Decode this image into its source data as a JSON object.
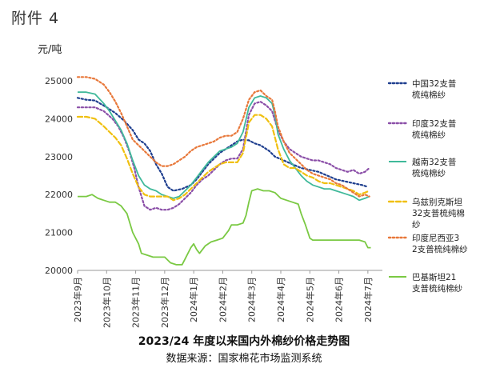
{
  "doc_label": "附件 4",
  "caption": {
    "title": "2023/24 年度以来国内外棉纱价格走势图",
    "source": "数据来源：国家棉花市场监测系统"
  },
  "chart_data": {
    "type": "line",
    "title": "",
    "xlabel": "",
    "ylabel": "元/吨",
    "ylim": [
      20000,
      25000
    ],
    "yticks": [
      20000,
      21000,
      22000,
      23000,
      24000,
      25000
    ],
    "xlim": [
      0,
      10.5
    ],
    "xtick_labels": [
      "2023年9月",
      "2023年10月",
      "2023年11月",
      "2023年12月",
      "2024年1月",
      "2024年2月",
      "2024年3月",
      "2024年4月",
      "2024年5月",
      "2024年6月",
      "2024年7月"
    ],
    "grid": false,
    "legend_position": "right",
    "series": [
      {
        "name": "中国32支普梳纯棉纱",
        "color": "#1f3f8f",
        "dash": "dotted",
        "points": [
          [
            0,
            24550
          ],
          [
            0.3,
            24500
          ],
          [
            0.6,
            24480
          ],
          [
            1.0,
            24300
          ],
          [
            1.3,
            24150
          ],
          [
            1.6,
            23950
          ],
          [
            1.9,
            23700
          ],
          [
            2.1,
            23450
          ],
          [
            2.3,
            23350
          ],
          [
            2.5,
            23150
          ],
          [
            2.7,
            22800
          ],
          [
            2.9,
            22550
          ],
          [
            3.1,
            22200
          ],
          [
            3.3,
            22100
          ],
          [
            3.6,
            22150
          ],
          [
            3.9,
            22250
          ],
          [
            4.1,
            22400
          ],
          [
            4.3,
            22600
          ],
          [
            4.5,
            22800
          ],
          [
            4.7,
            22950
          ],
          [
            4.9,
            23100
          ],
          [
            5.1,
            23200
          ],
          [
            5.3,
            23300
          ],
          [
            5.5,
            23400
          ],
          [
            5.7,
            23450
          ],
          [
            5.9,
            23430
          ],
          [
            6.1,
            23350
          ],
          [
            6.3,
            23300
          ],
          [
            6.4,
            23250
          ],
          [
            6.6,
            23150
          ],
          [
            6.8,
            23000
          ],
          [
            7.1,
            22900
          ],
          [
            7.4,
            22800
          ],
          [
            7.7,
            22700
          ],
          [
            8.0,
            22650
          ],
          [
            8.3,
            22600
          ],
          [
            8.6,
            22500
          ],
          [
            8.9,
            22400
          ],
          [
            9.2,
            22350
          ],
          [
            9.5,
            22300
          ],
          [
            9.8,
            22250
          ],
          [
            10.0,
            22200
          ]
        ]
      },
      {
        "name": "印度32支普梳纯棉纱",
        "color": "#8b4fa8",
        "dash": "dotted",
        "points": [
          [
            0,
            24300
          ],
          [
            0.3,
            24300
          ],
          [
            0.6,
            24300
          ],
          [
            0.9,
            24200
          ],
          [
            1.2,
            24000
          ],
          [
            1.4,
            23800
          ],
          [
            1.6,
            23500
          ],
          [
            1.8,
            23100
          ],
          [
            1.95,
            22700
          ],
          [
            2.1,
            22200
          ],
          [
            2.3,
            21700
          ],
          [
            2.5,
            21600
          ],
          [
            2.7,
            21650
          ],
          [
            2.9,
            21600
          ],
          [
            3.1,
            21600
          ],
          [
            3.3,
            21650
          ],
          [
            3.5,
            21750
          ],
          [
            3.7,
            21900
          ],
          [
            3.9,
            22050
          ],
          [
            4.1,
            22250
          ],
          [
            4.3,
            22400
          ],
          [
            4.5,
            22500
          ],
          [
            4.7,
            22650
          ],
          [
            4.9,
            22800
          ],
          [
            5.1,
            22900
          ],
          [
            5.3,
            22950
          ],
          [
            5.5,
            22950
          ],
          [
            5.7,
            23200
          ],
          [
            5.9,
            24100
          ],
          [
            6.1,
            24400
          ],
          [
            6.3,
            24450
          ],
          [
            6.5,
            24350
          ],
          [
            6.7,
            24200
          ],
          [
            6.9,
            23700
          ],
          [
            7.1,
            23400
          ],
          [
            7.3,
            23200
          ],
          [
            7.5,
            23100
          ],
          [
            7.7,
            23000
          ],
          [
            7.9,
            22950
          ],
          [
            8.1,
            22900
          ],
          [
            8.3,
            22900
          ],
          [
            8.5,
            22850
          ],
          [
            8.7,
            22800
          ],
          [
            8.9,
            22700
          ],
          [
            9.1,
            22650
          ],
          [
            9.3,
            22600
          ],
          [
            9.5,
            22650
          ],
          [
            9.7,
            22550
          ],
          [
            9.9,
            22600
          ],
          [
            10.05,
            22700
          ]
        ]
      },
      {
        "name": "越南32支普梳纯棉纱",
        "color": "#3fb99a",
        "dash": "solid",
        "points": [
          [
            0,
            24700
          ],
          [
            0.3,
            24700
          ],
          [
            0.6,
            24650
          ],
          [
            0.9,
            24400
          ],
          [
            1.1,
            24200
          ],
          [
            1.3,
            23950
          ],
          [
            1.5,
            23700
          ],
          [
            1.7,
            23350
          ],
          [
            1.9,
            22900
          ],
          [
            2.1,
            22500
          ],
          [
            2.3,
            22250
          ],
          [
            2.5,
            22150
          ],
          [
            2.7,
            22100
          ],
          [
            2.9,
            22000
          ],
          [
            3.1,
            21950
          ],
          [
            3.3,
            21900
          ],
          [
            3.5,
            21950
          ],
          [
            3.7,
            22100
          ],
          [
            3.9,
            22250
          ],
          [
            4.1,
            22450
          ],
          [
            4.3,
            22650
          ],
          [
            4.5,
            22850
          ],
          [
            4.7,
            23000
          ],
          [
            4.9,
            23150
          ],
          [
            5.1,
            23200
          ],
          [
            5.3,
            23250
          ],
          [
            5.5,
            23350
          ],
          [
            5.7,
            23650
          ],
          [
            5.9,
            24300
          ],
          [
            6.1,
            24550
          ],
          [
            6.3,
            24600
          ],
          [
            6.5,
            24550
          ],
          [
            6.7,
            24400
          ],
          [
            6.8,
            24100
          ],
          [
            6.9,
            23600
          ],
          [
            7.1,
            23200
          ],
          [
            7.3,
            22900
          ],
          [
            7.5,
            22700
          ],
          [
            7.7,
            22500
          ],
          [
            7.9,
            22350
          ],
          [
            8.1,
            22250
          ],
          [
            8.3,
            22200
          ],
          [
            8.5,
            22150
          ],
          [
            8.7,
            22150
          ],
          [
            8.9,
            22100
          ],
          [
            9.1,
            22050
          ],
          [
            9.3,
            22000
          ],
          [
            9.5,
            21950
          ],
          [
            9.7,
            21850
          ],
          [
            9.9,
            21900
          ],
          [
            10.05,
            21950
          ]
        ]
      },
      {
        "name": "乌兹别克斯坦32支普梳纯棉纱",
        "color": "#f0c010",
        "dash": "dashed",
        "points": [
          [
            0,
            24050
          ],
          [
            0.3,
            24050
          ],
          [
            0.6,
            24000
          ],
          [
            0.9,
            23800
          ],
          [
            1.1,
            23650
          ],
          [
            1.3,
            23500
          ],
          [
            1.5,
            23300
          ],
          [
            1.7,
            22950
          ],
          [
            1.9,
            22550
          ],
          [
            2.1,
            22200
          ],
          [
            2.3,
            22000
          ],
          [
            2.5,
            21950
          ],
          [
            2.7,
            21950
          ],
          [
            2.9,
            21950
          ],
          [
            3.1,
            21950
          ],
          [
            3.3,
            21850
          ],
          [
            3.5,
            21900
          ],
          [
            3.7,
            22000
          ],
          [
            3.9,
            22150
          ],
          [
            4.1,
            22300
          ],
          [
            4.3,
            22450
          ],
          [
            4.5,
            22600
          ],
          [
            4.7,
            22700
          ],
          [
            4.9,
            22800
          ],
          [
            5.1,
            22850
          ],
          [
            5.3,
            22850
          ],
          [
            5.5,
            22850
          ],
          [
            5.7,
            23100
          ],
          [
            5.9,
            23900
          ],
          [
            6.1,
            24100
          ],
          [
            6.3,
            24100
          ],
          [
            6.5,
            24000
          ],
          [
            6.7,
            23800
          ],
          [
            6.9,
            23200
          ],
          [
            7.1,
            22800
          ],
          [
            7.3,
            22700
          ],
          [
            7.5,
            22700
          ],
          [
            7.7,
            22600
          ],
          [
            7.9,
            22500
          ],
          [
            8.1,
            22450
          ],
          [
            8.3,
            22350
          ],
          [
            8.5,
            22300
          ],
          [
            8.7,
            22300
          ],
          [
            8.9,
            22250
          ],
          [
            9.1,
            22200
          ],
          [
            9.3,
            22150
          ],
          [
            9.5,
            22100
          ],
          [
            9.7,
            22000
          ],
          [
            9.9,
            22050
          ],
          [
            10.05,
            22100
          ]
        ]
      },
      {
        "name": "印度尼西亚32支普梳纯棉纱",
        "color": "#e8783a",
        "dash": "dotted",
        "points": [
          [
            0,
            25100
          ],
          [
            0.3,
            25100
          ],
          [
            0.6,
            25050
          ],
          [
            0.9,
            24900
          ],
          [
            1.1,
            24700
          ],
          [
            1.3,
            24450
          ],
          [
            1.5,
            24150
          ],
          [
            1.7,
            23800
          ],
          [
            1.9,
            23450
          ],
          [
            2.1,
            23300
          ],
          [
            2.3,
            23150
          ],
          [
            2.5,
            23000
          ],
          [
            2.7,
            22850
          ],
          [
            2.9,
            22750
          ],
          [
            3.1,
            22750
          ],
          [
            3.3,
            22800
          ],
          [
            3.5,
            22900
          ],
          [
            3.7,
            23000
          ],
          [
            3.9,
            23150
          ],
          [
            4.1,
            23250
          ],
          [
            4.3,
            23300
          ],
          [
            4.5,
            23350
          ],
          [
            4.7,
            23400
          ],
          [
            4.9,
            23500
          ],
          [
            5.1,
            23550
          ],
          [
            5.3,
            23550
          ],
          [
            5.5,
            23650
          ],
          [
            5.7,
            24000
          ],
          [
            5.9,
            24500
          ],
          [
            6.1,
            24700
          ],
          [
            6.3,
            24750
          ],
          [
            6.5,
            24600
          ],
          [
            6.7,
            24500
          ],
          [
            6.8,
            24200
          ],
          [
            6.9,
            23800
          ],
          [
            7.1,
            23400
          ],
          [
            7.3,
            23100
          ],
          [
            7.5,
            22950
          ],
          [
            7.7,
            22800
          ],
          [
            7.9,
            22650
          ],
          [
            8.1,
            22550
          ],
          [
            8.3,
            22500
          ],
          [
            8.5,
            22450
          ],
          [
            8.7,
            22400
          ],
          [
            8.9,
            22300
          ],
          [
            9.1,
            22250
          ],
          [
            9.3,
            22150
          ],
          [
            9.5,
            22050
          ],
          [
            9.7,
            21950
          ],
          [
            9.9,
            22000
          ],
          [
            10.05,
            21950
          ]
        ]
      },
      {
        "name": "巴基斯坦21支普梳纯棉纱",
        "color": "#7ac943",
        "dash": "solid",
        "points": [
          [
            0,
            21950
          ],
          [
            0.3,
            21950
          ],
          [
            0.5,
            22000
          ],
          [
            0.7,
            21900
          ],
          [
            0.9,
            21850
          ],
          [
            1.1,
            21800
          ],
          [
            1.3,
            21800
          ],
          [
            1.5,
            21700
          ],
          [
            1.7,
            21500
          ],
          [
            1.9,
            21000
          ],
          [
            2.1,
            20700
          ],
          [
            2.2,
            20450
          ],
          [
            2.4,
            20400
          ],
          [
            2.6,
            20350
          ],
          [
            2.8,
            20350
          ],
          [
            3.0,
            20350
          ],
          [
            3.2,
            20200
          ],
          [
            3.4,
            20150
          ],
          [
            3.6,
            20150
          ],
          [
            3.7,
            20300
          ],
          [
            3.9,
            20600
          ],
          [
            4.0,
            20700
          ],
          [
            4.1,
            20550
          ],
          [
            4.2,
            20450
          ],
          [
            4.4,
            20650
          ],
          [
            4.6,
            20750
          ],
          [
            4.8,
            20800
          ],
          [
            5.0,
            20850
          ],
          [
            5.2,
            21050
          ],
          [
            5.3,
            21200
          ],
          [
            5.5,
            21200
          ],
          [
            5.7,
            21250
          ],
          [
            5.8,
            21450
          ],
          [
            5.9,
            21800
          ],
          [
            6.0,
            22100
          ],
          [
            6.2,
            22150
          ],
          [
            6.4,
            22100
          ],
          [
            6.6,
            22100
          ],
          [
            6.8,
            22050
          ],
          [
            7.0,
            21900
          ],
          [
            7.2,
            21850
          ],
          [
            7.4,
            21800
          ],
          [
            7.6,
            21750
          ],
          [
            7.7,
            21500
          ],
          [
            7.85,
            21200
          ],
          [
            8.0,
            20850
          ],
          [
            8.1,
            20800
          ],
          [
            8.3,
            20800
          ],
          [
            8.5,
            20800
          ],
          [
            8.7,
            20800
          ],
          [
            8.9,
            20800
          ],
          [
            9.1,
            20800
          ],
          [
            9.3,
            20800
          ],
          [
            9.5,
            20800
          ],
          [
            9.7,
            20800
          ],
          [
            9.9,
            20750
          ],
          [
            10.0,
            20600
          ],
          [
            10.1,
            20600
          ]
        ]
      }
    ]
  }
}
